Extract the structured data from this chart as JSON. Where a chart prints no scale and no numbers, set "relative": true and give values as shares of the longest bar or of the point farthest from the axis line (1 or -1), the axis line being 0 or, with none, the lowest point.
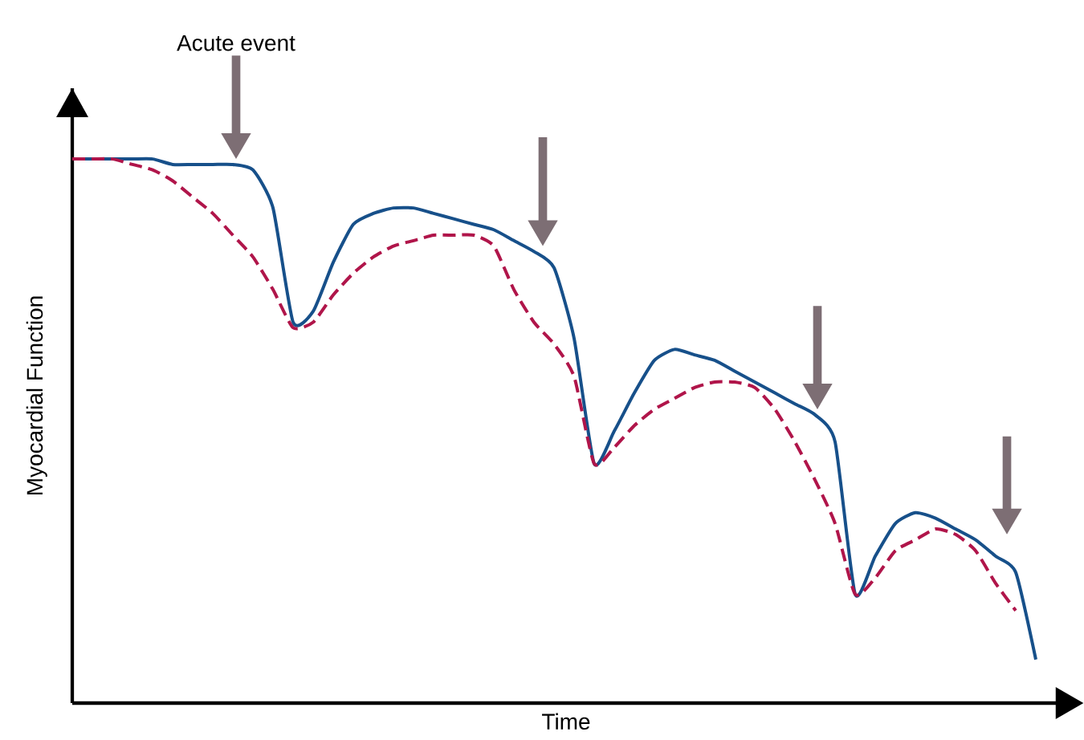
{
  "chart_data": {
    "type": "line",
    "relative": true,
    "xlabel": "Time",
    "ylabel": "Myocardial Function",
    "annotations": [
      "Acute event"
    ],
    "categories": [
      null,
      null,
      null,
      null,
      null,
      null,
      null,
      null,
      null,
      null,
      null,
      null,
      null,
      null,
      null,
      null,
      null,
      null,
      null,
      null,
      null,
      null,
      null,
      null,
      null,
      null,
      null,
      null,
      null,
      null,
      null,
      null,
      null,
      null,
      null,
      null,
      null,
      null,
      null,
      null,
      null,
      null,
      null,
      null,
      null,
      null,
      null,
      null,
      null
    ],
    "series": [
      {
        "color": "#17508a",
        "line_style": "solid",
        "values": [
          1.0,
          1.0,
          1.0,
          1.0,
          1.0,
          0.99,
          0.99,
          0.99,
          0.99,
          0.98,
          0.91,
          0.7,
          0.72,
          0.81,
          0.88,
          0.9,
          0.91,
          0.91,
          0.9,
          0.89,
          0.88,
          0.87,
          0.85,
          0.83,
          0.8,
          0.67,
          0.44,
          0.5,
          0.57,
          0.63,
          0.65,
          0.64,
          0.63,
          0.61,
          0.59,
          0.57,
          0.55,
          0.53,
          0.48,
          0.2,
          0.27,
          0.33,
          0.35,
          0.34,
          0.32,
          0.3,
          0.27,
          0.24,
          0.08
        ]
      },
      {
        "color": "#b0154a",
        "line_style": "dashed",
        "values": [
          1.0,
          1.0,
          1.0,
          0.99,
          0.98,
          0.96,
          0.93,
          0.9,
          0.86,
          0.82,
          0.76,
          0.69,
          0.7,
          0.75,
          0.79,
          0.82,
          0.84,
          0.85,
          0.86,
          0.86,
          0.86,
          0.84,
          0.76,
          0.7,
          0.66,
          0.6,
          0.44,
          0.47,
          0.51,
          0.54,
          0.56,
          0.58,
          0.59,
          0.59,
          0.58,
          0.54,
          0.48,
          0.41,
          0.33,
          0.2,
          0.23,
          0.28,
          0.3,
          0.32,
          0.31,
          0.28,
          0.22,
          0.17,
          null
        ]
      }
    ]
  }
}
